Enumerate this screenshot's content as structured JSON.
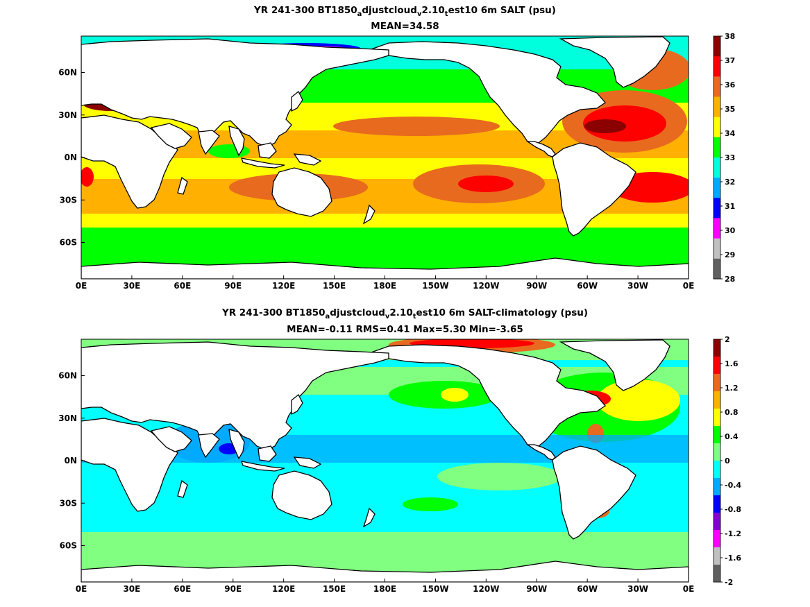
{
  "panels": [
    {
      "title": {
        "prefix": "YR 241-300 BT1850",
        "s1": "a",
        "p2": "djustcloud",
        "s2": "v",
        "p3": "2.10",
        "s3": "t",
        "suffix": "est10 6m SALT (psu)"
      },
      "subtitle": "MEAN=34.58",
      "colorbar": {
        "labels": [
          "38",
          "37",
          "36",
          "35",
          "34",
          "33",
          "32",
          "31",
          "30",
          "29",
          "28"
        ],
        "colors": [
          "#8b0000",
          "#ff0000",
          "#e86a1e",
          "#ffb000",
          "#ffff00",
          "#00ff00",
          "#00ffdd",
          "#00aaff",
          "#0000ff",
          "#ff00ff",
          "#c0c0c0",
          "#606060"
        ]
      }
    },
    {
      "title": {
        "prefix": "YR 241-300 BT1850",
        "s1": "a",
        "p2": "djustcloud",
        "s2": "v",
        "p3": "2.10",
        "s3": "t",
        "suffix": "est10 6m SALT-climatology (psu)"
      },
      "subtitle": "MEAN=-0.11   RMS=0.41   Max=5.30   Min=-3.65",
      "colorbar": {
        "labels": [
          "2",
          "1.6",
          "1.2",
          "0.8",
          "0.4",
          "0",
          "-0.4",
          "-0.8",
          "-1.2",
          "-1.6",
          "-2"
        ],
        "colors": [
          "#8b0000",
          "#ff0000",
          "#e86a1e",
          "#ffb000",
          "#ffff00",
          "#00ff00",
          "#80ff80",
          "#00ffff",
          "#00aaff",
          "#0000ff",
          "#8800cc",
          "#ff00ff",
          "#c0c0c0",
          "#606060"
        ]
      }
    }
  ],
  "axes": {
    "xticks": [
      "0E",
      "30E",
      "60E",
      "90E",
      "120E",
      "150E",
      "180E",
      "150W",
      "120W",
      "90W",
      "60W",
      "30W",
      "0E"
    ],
    "yticks": [
      "60N",
      "30N",
      "0N",
      "30S",
      "60S"
    ]
  },
  "palette": {
    "land": "#ffffff",
    "coast": "#000000",
    "top_ocean": "#ffb000",
    "bottom_ocean": "#00ffff"
  }
}
